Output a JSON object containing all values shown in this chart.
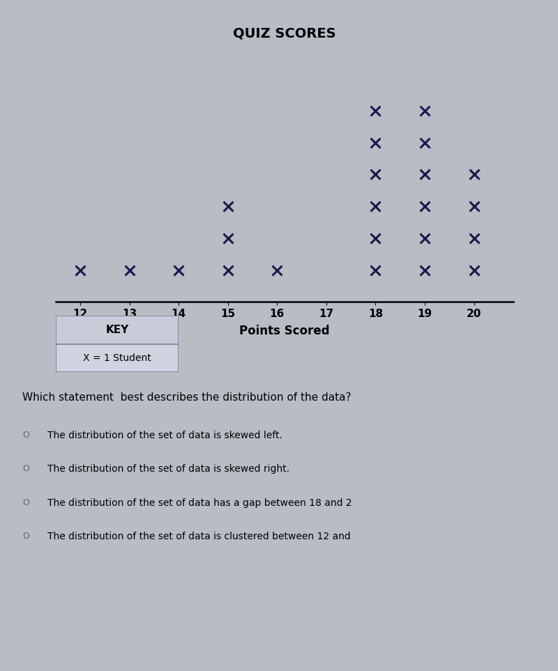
{
  "title": "QUIZ SCORES",
  "xlabel": "Points Scored",
  "counts": {
    "12": 1,
    "13": 1,
    "14": 1,
    "15": 3,
    "16": 1,
    "17": 0,
    "18": 6,
    "19": 6,
    "20": 4
  },
  "x_min": 11.5,
  "x_max": 20.8,
  "x_ticks": [
    12,
    13,
    14,
    15,
    16,
    17,
    18,
    19,
    20
  ],
  "y_max": 8,
  "marker_color": "#1a1a4e",
  "marker_size": 10,
  "marker_linewidth": 2.2,
  "title_fontsize": 14,
  "xlabel_fontsize": 12,
  "tick_fontsize": 11,
  "key_title": "KEY",
  "key_label": "X = 1 Student",
  "question_text": "Which statement  best describes the distribution of the data?",
  "options": [
    "The distribution of the set of data is skewed left.",
    "The distribution of the set of data is skewed right.",
    "The distribution of the set of data has a gap between 18 and 2",
    "The distribution of the set of data is clustered between 12 and"
  ],
  "bg_color": "#b8bcc4",
  "key_header_color": "#c8ccd8",
  "key_body_color": "#d0d4e0",
  "key_border_color": "#8888aa"
}
